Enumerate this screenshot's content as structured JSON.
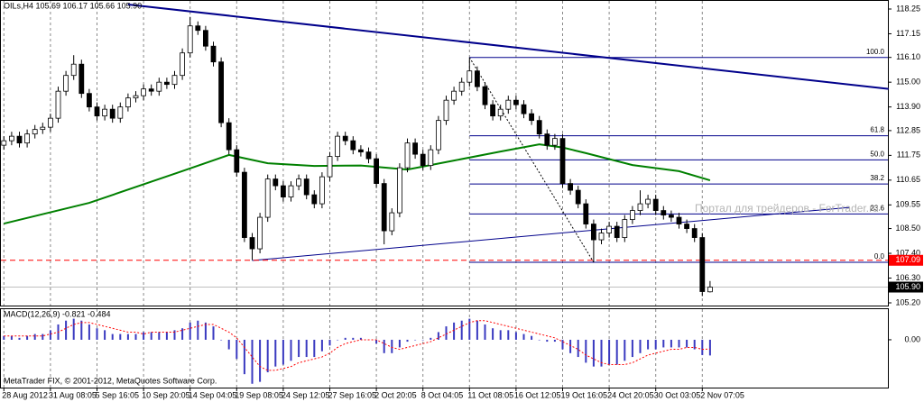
{
  "chart_data": {
    "type": "candlestick",
    "header": "OILs,H4  105.69 106.17 105.66 105.90",
    "categories": [
      "28 Aug 2012",
      null,
      null,
      null,
      null,
      null,
      "31 Aug 08:05",
      null,
      null,
      null,
      null,
      null,
      "5 Sep 16:05",
      null,
      null,
      null,
      null,
      null,
      "10 Sep 20:05",
      null,
      null,
      null,
      null,
      null,
      "14 Sep 04:05",
      null,
      null,
      null,
      null,
      null,
      "19 Sep 08:05",
      null,
      null,
      null,
      null,
      null,
      "24 Sep 12:05",
      null,
      null,
      null,
      null,
      null,
      "27 Sep 16:05",
      null,
      null,
      null,
      null,
      null,
      "2 Oct 20:05",
      null,
      null,
      null,
      null,
      null,
      "8 Oct 04:05",
      null,
      null,
      null,
      null,
      null,
      "11 Oct 08:05",
      null,
      null,
      null,
      null,
      null,
      "16 Oct 12:05",
      null,
      null,
      null,
      null,
      null,
      "19 Oct 16:05",
      null,
      null,
      null,
      null,
      null,
      "24 Oct 20:05",
      null,
      null,
      null,
      null,
      null,
      "30 Oct 03:05",
      null,
      null,
      null,
      null,
      null,
      "2 Nov 07:05",
      null
    ],
    "open": [
      112.2,
      112.4,
      112.6,
      112.3,
      112.7,
      112.9,
      113.0,
      113.4,
      114.6,
      115.3,
      115.8,
      114.5,
      113.9,
      113.5,
      113.8,
      113.4,
      113.9,
      114.3,
      114.4,
      114.7,
      114.6,
      115.0,
      114.9,
      115.3,
      116.3,
      117.5,
      117.3,
      116.6,
      115.9,
      113.2,
      112.0,
      111.0,
      108.1,
      107.6,
      109.0,
      110.7,
      110.4,
      109.9,
      110.4,
      110.7,
      110.0,
      109.6,
      110.8,
      111.7,
      112.6,
      112.4,
      112.0,
      111.9,
      111.6,
      110.5,
      108.4,
      109.2,
      111.2,
      112.3,
      111.8,
      111.3,
      112.0,
      113.3,
      114.2,
      114.6,
      115.0,
      115.5,
      114.8,
      114.0,
      113.5,
      113.8,
      114.2,
      114.0,
      113.6,
      113.3,
      112.7,
      112.2,
      112.5,
      110.5,
      110.2,
      109.6,
      108.7,
      108.0,
      108.3,
      108.6,
      108.1,
      108.9,
      109.3,
      109.6,
      109.8,
      109.3,
      109.1,
      109.0,
      108.7,
      108.5,
      108.1,
      105.69
    ],
    "high": [
      112.6,
      112.8,
      112.8,
      112.9,
      113.1,
      113.2,
      113.6,
      114.8,
      115.5,
      116.2,
      116.0,
      114.7,
      114.1,
      114.0,
      114.0,
      114.1,
      114.5,
      114.6,
      114.9,
      114.9,
      115.2,
      115.2,
      115.5,
      116.5,
      117.9,
      117.7,
      117.5,
      116.8,
      116.1,
      113.4,
      112.2,
      111.2,
      108.3,
      109.2,
      110.9,
      110.9,
      110.6,
      110.6,
      110.9,
      110.9,
      110.2,
      111.0,
      111.9,
      112.8,
      112.8,
      112.6,
      112.2,
      112.1,
      111.8,
      110.7,
      109.4,
      111.4,
      112.5,
      112.5,
      112.0,
      112.2,
      113.5,
      114.4,
      114.8,
      115.2,
      116.1,
      115.7,
      115.0,
      114.2,
      114.0,
      114.4,
      114.4,
      114.2,
      113.8,
      113.5,
      112.9,
      112.7,
      112.7,
      110.7,
      110.4,
      109.8,
      108.9,
      108.5,
      108.8,
      108.8,
      109.1,
      109.5,
      110.2,
      110.0,
      110.0,
      109.5,
      109.3,
      109.2,
      108.9,
      108.7,
      108.3,
      106.17
    ],
    "low": [
      112.0,
      112.2,
      112.1,
      112.1,
      112.5,
      112.7,
      112.8,
      113.2,
      114.4,
      115.1,
      114.3,
      113.7,
      113.3,
      113.3,
      113.2,
      113.2,
      113.7,
      114.1,
      114.2,
      114.4,
      114.4,
      114.7,
      114.7,
      115.1,
      116.1,
      117.1,
      116.4,
      115.7,
      113.0,
      111.8,
      110.8,
      107.9,
      107.1,
      107.4,
      108.8,
      110.2,
      109.7,
      109.7,
      110.2,
      109.8,
      109.4,
      109.4,
      110.6,
      111.5,
      112.2,
      111.8,
      111.7,
      111.4,
      110.3,
      107.8,
      108.2,
      109.0,
      111.0,
      111.6,
      111.1,
      111.1,
      111.8,
      113.1,
      114.0,
      114.4,
      114.8,
      114.6,
      113.8,
      113.3,
      113.3,
      113.6,
      113.8,
      113.4,
      113.1,
      112.5,
      112.0,
      112.0,
      110.3,
      110.0,
      109.4,
      108.5,
      107.0,
      107.8,
      108.1,
      107.9,
      107.9,
      108.7,
      109.1,
      109.4,
      109.1,
      108.9,
      108.8,
      108.5,
      108.3,
      107.9,
      105.5,
      105.66
    ],
    "close": [
      112.4,
      112.6,
      112.3,
      112.7,
      112.9,
      113.0,
      113.4,
      114.6,
      115.3,
      115.8,
      114.5,
      113.9,
      113.5,
      113.8,
      113.4,
      113.9,
      114.3,
      114.4,
      114.7,
      114.6,
      115.0,
      114.9,
      115.3,
      116.3,
      117.5,
      117.3,
      116.6,
      115.9,
      113.2,
      112.0,
      111.0,
      108.1,
      107.6,
      109.0,
      110.7,
      110.4,
      109.9,
      110.4,
      110.7,
      110.0,
      109.6,
      110.8,
      111.7,
      112.6,
      112.4,
      112.0,
      111.9,
      111.6,
      110.5,
      108.4,
      109.2,
      111.2,
      112.3,
      111.8,
      111.3,
      112.0,
      113.3,
      114.2,
      114.6,
      115.0,
      115.5,
      114.8,
      114.0,
      113.5,
      113.8,
      114.2,
      114.0,
      113.6,
      113.3,
      112.7,
      112.2,
      112.5,
      110.5,
      110.2,
      109.6,
      108.7,
      108.0,
      108.3,
      108.6,
      108.1,
      108.9,
      109.3,
      109.6,
      109.8,
      109.3,
      109.1,
      109.0,
      108.7,
      108.5,
      108.1,
      105.7,
      105.9
    ],
    "color_up": "#ffffff",
    "color_down": "#000000",
    "ylim": [
      105.04,
      118.65
    ],
    "yticks": [
      118.25,
      117.15,
      {
        "value": 116.1,
        "label": "116.10"
      },
      {
        "value": 115,
        "label": "115.00"
      },
      {
        "value": 113.9,
        "label": "113.90"
      },
      112.85,
      111.75,
      110.65,
      109.55,
      {
        "value": 108.5,
        "label": "108.50"
      },
      {
        "value": 107.4,
        "label": "107.40"
      },
      {
        "value": 106.3,
        "label": "106.30"
      },
      {
        "value": 105.2,
        "label": "105.20"
      }
    ],
    "grid": true,
    "ma": {
      "color": "#008000",
      "x": [
        0,
        11,
        23,
        29,
        34,
        40,
        46,
        52,
        58,
        64,
        69,
        72,
        75,
        81,
        87,
        91
      ],
      "values": [
        108.72,
        109.64,
        111.05,
        111.77,
        111.4,
        111.28,
        111.3,
        111.12,
        111.52,
        111.92,
        112.24,
        112.1,
        111.85,
        111.32,
        111.05,
        110.64
      ]
    },
    "trendlines": [
      {
        "color": "#00008b",
        "width": 2,
        "points": [
          [
            16,
            118.45
          ],
          [
            114,
            114.7
          ]
        ]
      },
      {
        "color": "#00008b",
        "width": 1,
        "points": [
          [
            32,
            107.08
          ],
          [
            109,
            109.44
          ]
        ]
      }
    ],
    "fibonacci": {
      "color": "#00008b",
      "from": [
        60,
        116.1
      ],
      "to": [
        76,
        107.0
      ],
      "levels": [
        {
          "label": "100.0",
          "value": 116.1
        },
        {
          "label": "61.8",
          "value": 112.62
        },
        {
          "label": "50.0",
          "value": 111.55
        },
        {
          "label": "38.2",
          "value": 110.48
        },
        {
          "label": "23.6",
          "value": 109.15
        },
        {
          "label": "0.0",
          "value": 107.0
        }
      ]
    },
    "price_lines": [
      {
        "value": 107.09,
        "label": "107.09",
        "color": "#ff0000",
        "dashed": true
      },
      {
        "value": 105.9,
        "label": "105.90",
        "color": "#000000",
        "dashed": false
      }
    ],
    "watermark": "Портал для трейдеров - ForTrader.ru",
    "footer": "MetaTrader FIX, © 2001-2012, MetaQuotes Software Corp.",
    "macd": {
      "label": "MACD(12,26,9) -0.821 -0.484",
      "hist_color": "#3a3ac0",
      "signal_color": "#ff0000",
      "ylim": [
        -2.5,
        1.6
      ],
      "yticks": [
        {
          "value": 0,
          "label": "0.00"
        }
      ],
      "histogram": [
        0.2,
        0.2,
        0.1,
        0.2,
        0.3,
        0.3,
        0.5,
        0.8,
        1.0,
        1.1,
        1.0,
        0.8,
        0.6,
        0.5,
        0.3,
        0.3,
        0.3,
        0.3,
        0.4,
        0.4,
        0.4,
        0.4,
        0.5,
        0.6,
        0.9,
        1.0,
        0.9,
        0.7,
        0.0,
        -0.5,
        -1.0,
        -1.8,
        -2.3,
        -2.2,
        -1.7,
        -1.4,
        -1.3,
        -1.1,
        -0.9,
        -0.9,
        -0.9,
        -0.6,
        -0.3,
        0.0,
        0.1,
        0.1,
        0.1,
        0.0,
        -0.2,
        -0.7,
        -0.7,
        -0.4,
        -0.1,
        0.0,
        0.0,
        0.1,
        0.4,
        0.7,
        0.9,
        1.0,
        1.1,
        1.0,
        0.8,
        0.6,
        0.5,
        0.5,
        0.4,
        0.3,
        0.2,
        0.0,
        -0.1,
        -0.1,
        -0.5,
        -0.7,
        -0.9,
        -1.2,
        -1.4,
        -1.4,
        -1.3,
        -1.3,
        -1.1,
        -0.9,
        -0.7,
        -0.5,
        -0.5,
        -0.4,
        -0.4,
        -0.4,
        -0.4,
        -0.5,
        -0.8,
        -0.821
      ],
      "signal": [
        0.2,
        0.2,
        0.2,
        0.2,
        0.2,
        0.2,
        0.3,
        0.4,
        0.6,
        0.8,
        0.9,
        0.9,
        0.8,
        0.7,
        0.6,
        0.5,
        0.4,
        0.4,
        0.3,
        0.4,
        0.4,
        0.4,
        0.4,
        0.5,
        0.6,
        0.7,
        0.8,
        0.8,
        0.6,
        0.4,
        0.1,
        -0.4,
        -0.9,
        -1.4,
        -1.6,
        -1.6,
        -1.5,
        -1.4,
        -1.2,
        -1.1,
        -1.0,
        -0.9,
        -0.7,
        -0.4,
        -0.2,
        -0.1,
        0.0,
        0.0,
        0.0,
        -0.2,
        -0.4,
        -0.5,
        -0.4,
        -0.3,
        -0.2,
        -0.1,
        0.1,
        0.3,
        0.5,
        0.7,
        0.9,
        1.0,
        1.0,
        0.9,
        0.8,
        0.7,
        0.6,
        0.5,
        0.4,
        0.3,
        0.2,
        0.1,
        -0.1,
        -0.3,
        -0.5,
        -0.8,
        -1.0,
        -1.2,
        -1.3,
        -1.3,
        -1.3,
        -1.2,
        -1.0,
        -0.8,
        -0.7,
        -0.6,
        -0.5,
        -0.5,
        -0.4,
        -0.4,
        -0.5,
        -0.484
      ]
    }
  }
}
